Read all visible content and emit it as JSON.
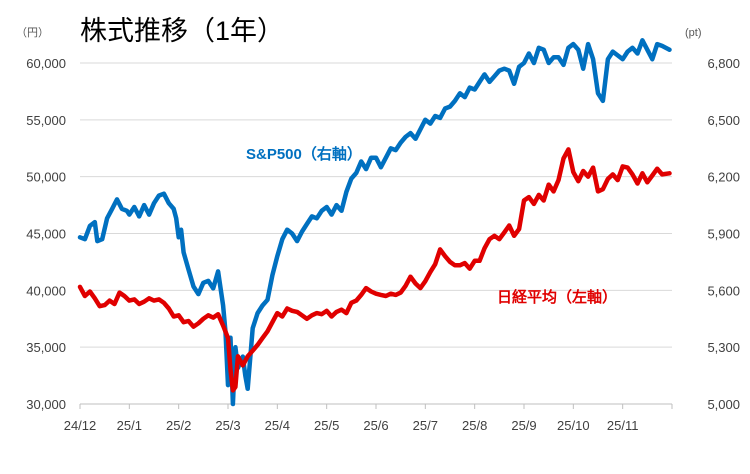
{
  "chart_data": {
    "type": "line",
    "title": "株式推移（1年）",
    "left_unit": "（円）",
    "right_unit": "(pt)",
    "left_axis": {
      "min": 30000,
      "max": 60000,
      "ticks": [
        "30,000",
        "35,000",
        "40,000",
        "45,000",
        "50,000",
        "55,000",
        "60,000"
      ]
    },
    "right_axis": {
      "min": 5000,
      "max": 6800,
      "ticks": [
        "5,000",
        "5,300",
        "5,600",
        "5,900",
        "6,200",
        "6,500",
        "6,800"
      ]
    },
    "x_labels": [
      "24/12",
      "25/1",
      "25/2",
      "25/3",
      "25/4",
      "25/5",
      "25/6",
      "25/7",
      "25/8",
      "25/9",
      "25/10",
      "25/11"
    ],
    "x_range": [
      0,
      12.0
    ],
    "series": [
      {
        "name": "S&P500（右軸）",
        "axis": "right",
        "color": "#0070c0",
        "x": [
          0.0,
          0.1,
          0.2,
          0.3,
          0.35,
          0.45,
          0.55,
          0.65,
          0.75,
          0.85,
          0.95,
          1.0,
          1.1,
          1.2,
          1.3,
          1.4,
          1.5,
          1.6,
          1.7,
          1.8,
          1.9,
          1.95,
          2.0,
          2.05,
          2.1,
          2.2,
          2.3,
          2.4,
          2.5,
          2.6,
          2.7,
          2.8,
          2.9,
          2.95,
          3.0,
          3.05,
          3.1,
          3.15,
          3.2,
          3.3,
          3.35,
          3.4,
          3.5,
          3.6,
          3.7,
          3.8,
          3.9,
          4.0,
          4.1,
          4.2,
          4.3,
          4.4,
          4.5,
          4.6,
          4.7,
          4.8,
          4.9,
          5.0,
          5.1,
          5.2,
          5.3,
          5.4,
          5.5,
          5.6,
          5.7,
          5.8,
          5.9,
          6.0,
          6.1,
          6.2,
          6.3,
          6.4,
          6.5,
          6.6,
          6.7,
          6.8,
          6.9,
          7.0,
          7.1,
          7.2,
          7.3,
          7.4,
          7.5,
          7.6,
          7.7,
          7.8,
          7.9,
          8.0,
          8.1,
          8.2,
          8.3,
          8.4,
          8.5,
          8.6,
          8.7,
          8.8,
          8.9,
          9.0,
          9.1,
          9.2,
          9.3,
          9.4,
          9.5,
          9.6,
          9.7,
          9.8,
          9.9,
          10.0,
          10.1,
          10.2,
          10.3,
          10.4,
          10.5,
          10.6,
          10.7,
          10.8,
          10.9,
          11.0,
          11.1,
          11.2,
          11.3,
          11.4,
          11.5,
          11.6,
          11.7,
          11.8,
          11.95
        ],
        "values": [
          5880,
          5870,
          5940,
          5960,
          5860,
          5870,
          5980,
          6030,
          6080,
          6030,
          6020,
          6000,
          6040,
          5990,
          6050,
          6000,
          6060,
          6100,
          6110,
          6060,
          6030,
          5980,
          5880,
          5920,
          5800,
          5710,
          5620,
          5580,
          5640,
          5650,
          5610,
          5700,
          5520,
          5380,
          5100,
          5350,
          5000,
          5300,
          5190,
          5250,
          5150,
          5080,
          5400,
          5480,
          5520,
          5550,
          5680,
          5780,
          5870,
          5920,
          5900,
          5860,
          5910,
          5950,
          5990,
          5980,
          6020,
          6040,
          6000,
          6050,
          6020,
          6120,
          6190,
          6220,
          6280,
          6240,
          6300,
          6300,
          6250,
          6300,
          6350,
          6340,
          6380,
          6410,
          6430,
          6400,
          6450,
          6500,
          6480,
          6520,
          6510,
          6560,
          6570,
          6600,
          6640,
          6620,
          6670,
          6660,
          6700,
          6740,
          6700,
          6730,
          6760,
          6770,
          6760,
          6690,
          6780,
          6800,
          6850,
          6800,
          6880,
          6870,
          6800,
          6830,
          6830,
          6790,
          6880,
          6900,
          6870,
          6770,
          6900,
          6820,
          6640,
          6600,
          6820,
          6860,
          6840,
          6820,
          6860,
          6880,
          6850,
          6920,
          6870,
          6820,
          6900,
          6890,
          6870
        ]
      },
      {
        "name": "日経平均（左軸）",
        "axis": "left",
        "color": "#e00000",
        "x": [
          0.0,
          0.1,
          0.2,
          0.3,
          0.4,
          0.5,
          0.6,
          0.7,
          0.8,
          0.9,
          1.0,
          1.1,
          1.2,
          1.3,
          1.4,
          1.5,
          1.6,
          1.7,
          1.8,
          1.9,
          2.0,
          2.1,
          2.2,
          2.3,
          2.4,
          2.5,
          2.6,
          2.7,
          2.8,
          2.9,
          3.0,
          3.05,
          3.1,
          3.15,
          3.2,
          3.3,
          3.4,
          3.5,
          3.6,
          3.7,
          3.8,
          3.9,
          4.0,
          4.1,
          4.2,
          4.3,
          4.4,
          4.5,
          4.6,
          4.7,
          4.8,
          4.9,
          5.0,
          5.1,
          5.2,
          5.3,
          5.4,
          5.5,
          5.6,
          5.7,
          5.8,
          5.9,
          6.0,
          6.1,
          6.2,
          6.3,
          6.4,
          6.5,
          6.6,
          6.7,
          6.8,
          6.9,
          7.0,
          7.1,
          7.2,
          7.3,
          7.4,
          7.5,
          7.6,
          7.7,
          7.8,
          7.9,
          8.0,
          8.1,
          8.2,
          8.3,
          8.4,
          8.5,
          8.6,
          8.7,
          8.8,
          8.9,
          9.0,
          9.1,
          9.2,
          9.3,
          9.4,
          9.5,
          9.6,
          9.7,
          9.8,
          9.9,
          10.0,
          10.1,
          10.2,
          10.3,
          10.4,
          10.5,
          10.6,
          10.7,
          10.8,
          10.9,
          11.0,
          11.1,
          11.2,
          11.3,
          11.4,
          11.5,
          11.6,
          11.7,
          11.8,
          11.95
        ],
        "values": [
          40300,
          39500,
          39900,
          39300,
          38600,
          38700,
          39100,
          38800,
          39800,
          39500,
          39100,
          39200,
          38800,
          39000,
          39300,
          39100,
          39200,
          38900,
          38400,
          37700,
          37800,
          37200,
          37300,
          36800,
          37100,
          37500,
          37800,
          37600,
          37900,
          36900,
          35800,
          33000,
          31200,
          31500,
          34200,
          33400,
          34200,
          34700,
          35200,
          35800,
          36400,
          37200,
          38000,
          37700,
          38400,
          38200,
          38100,
          37800,
          37500,
          37800,
          38000,
          37900,
          38200,
          37700,
          38100,
          38300,
          38000,
          38900,
          39100,
          39600,
          40200,
          39900,
          39700,
          39600,
          39500,
          39700,
          39600,
          39800,
          40400,
          41200,
          40600,
          40200,
          40800,
          41600,
          42300,
          43600,
          43000,
          42500,
          42200,
          42200,
          42400,
          41900,
          42600,
          42600,
          43700,
          44500,
          44800,
          44500,
          45100,
          45700,
          44800,
          45400,
          47900,
          48200,
          47600,
          48400,
          47900,
          49300,
          48700,
          49700,
          51600,
          52400,
          50400,
          49600,
          50500,
          50000,
          50800,
          48700,
          48900,
          49800,
          50200,
          49700,
          50900,
          50800,
          50200,
          49400,
          50300,
          49500,
          50100,
          50700,
          50200,
          50300
        ]
      }
    ],
    "annotations": [
      {
        "text": "S&P500（右軸）",
        "color": "#0070c0"
      },
      {
        "text": "日経平均（左軸）",
        "color": "#e00000"
      }
    ]
  }
}
